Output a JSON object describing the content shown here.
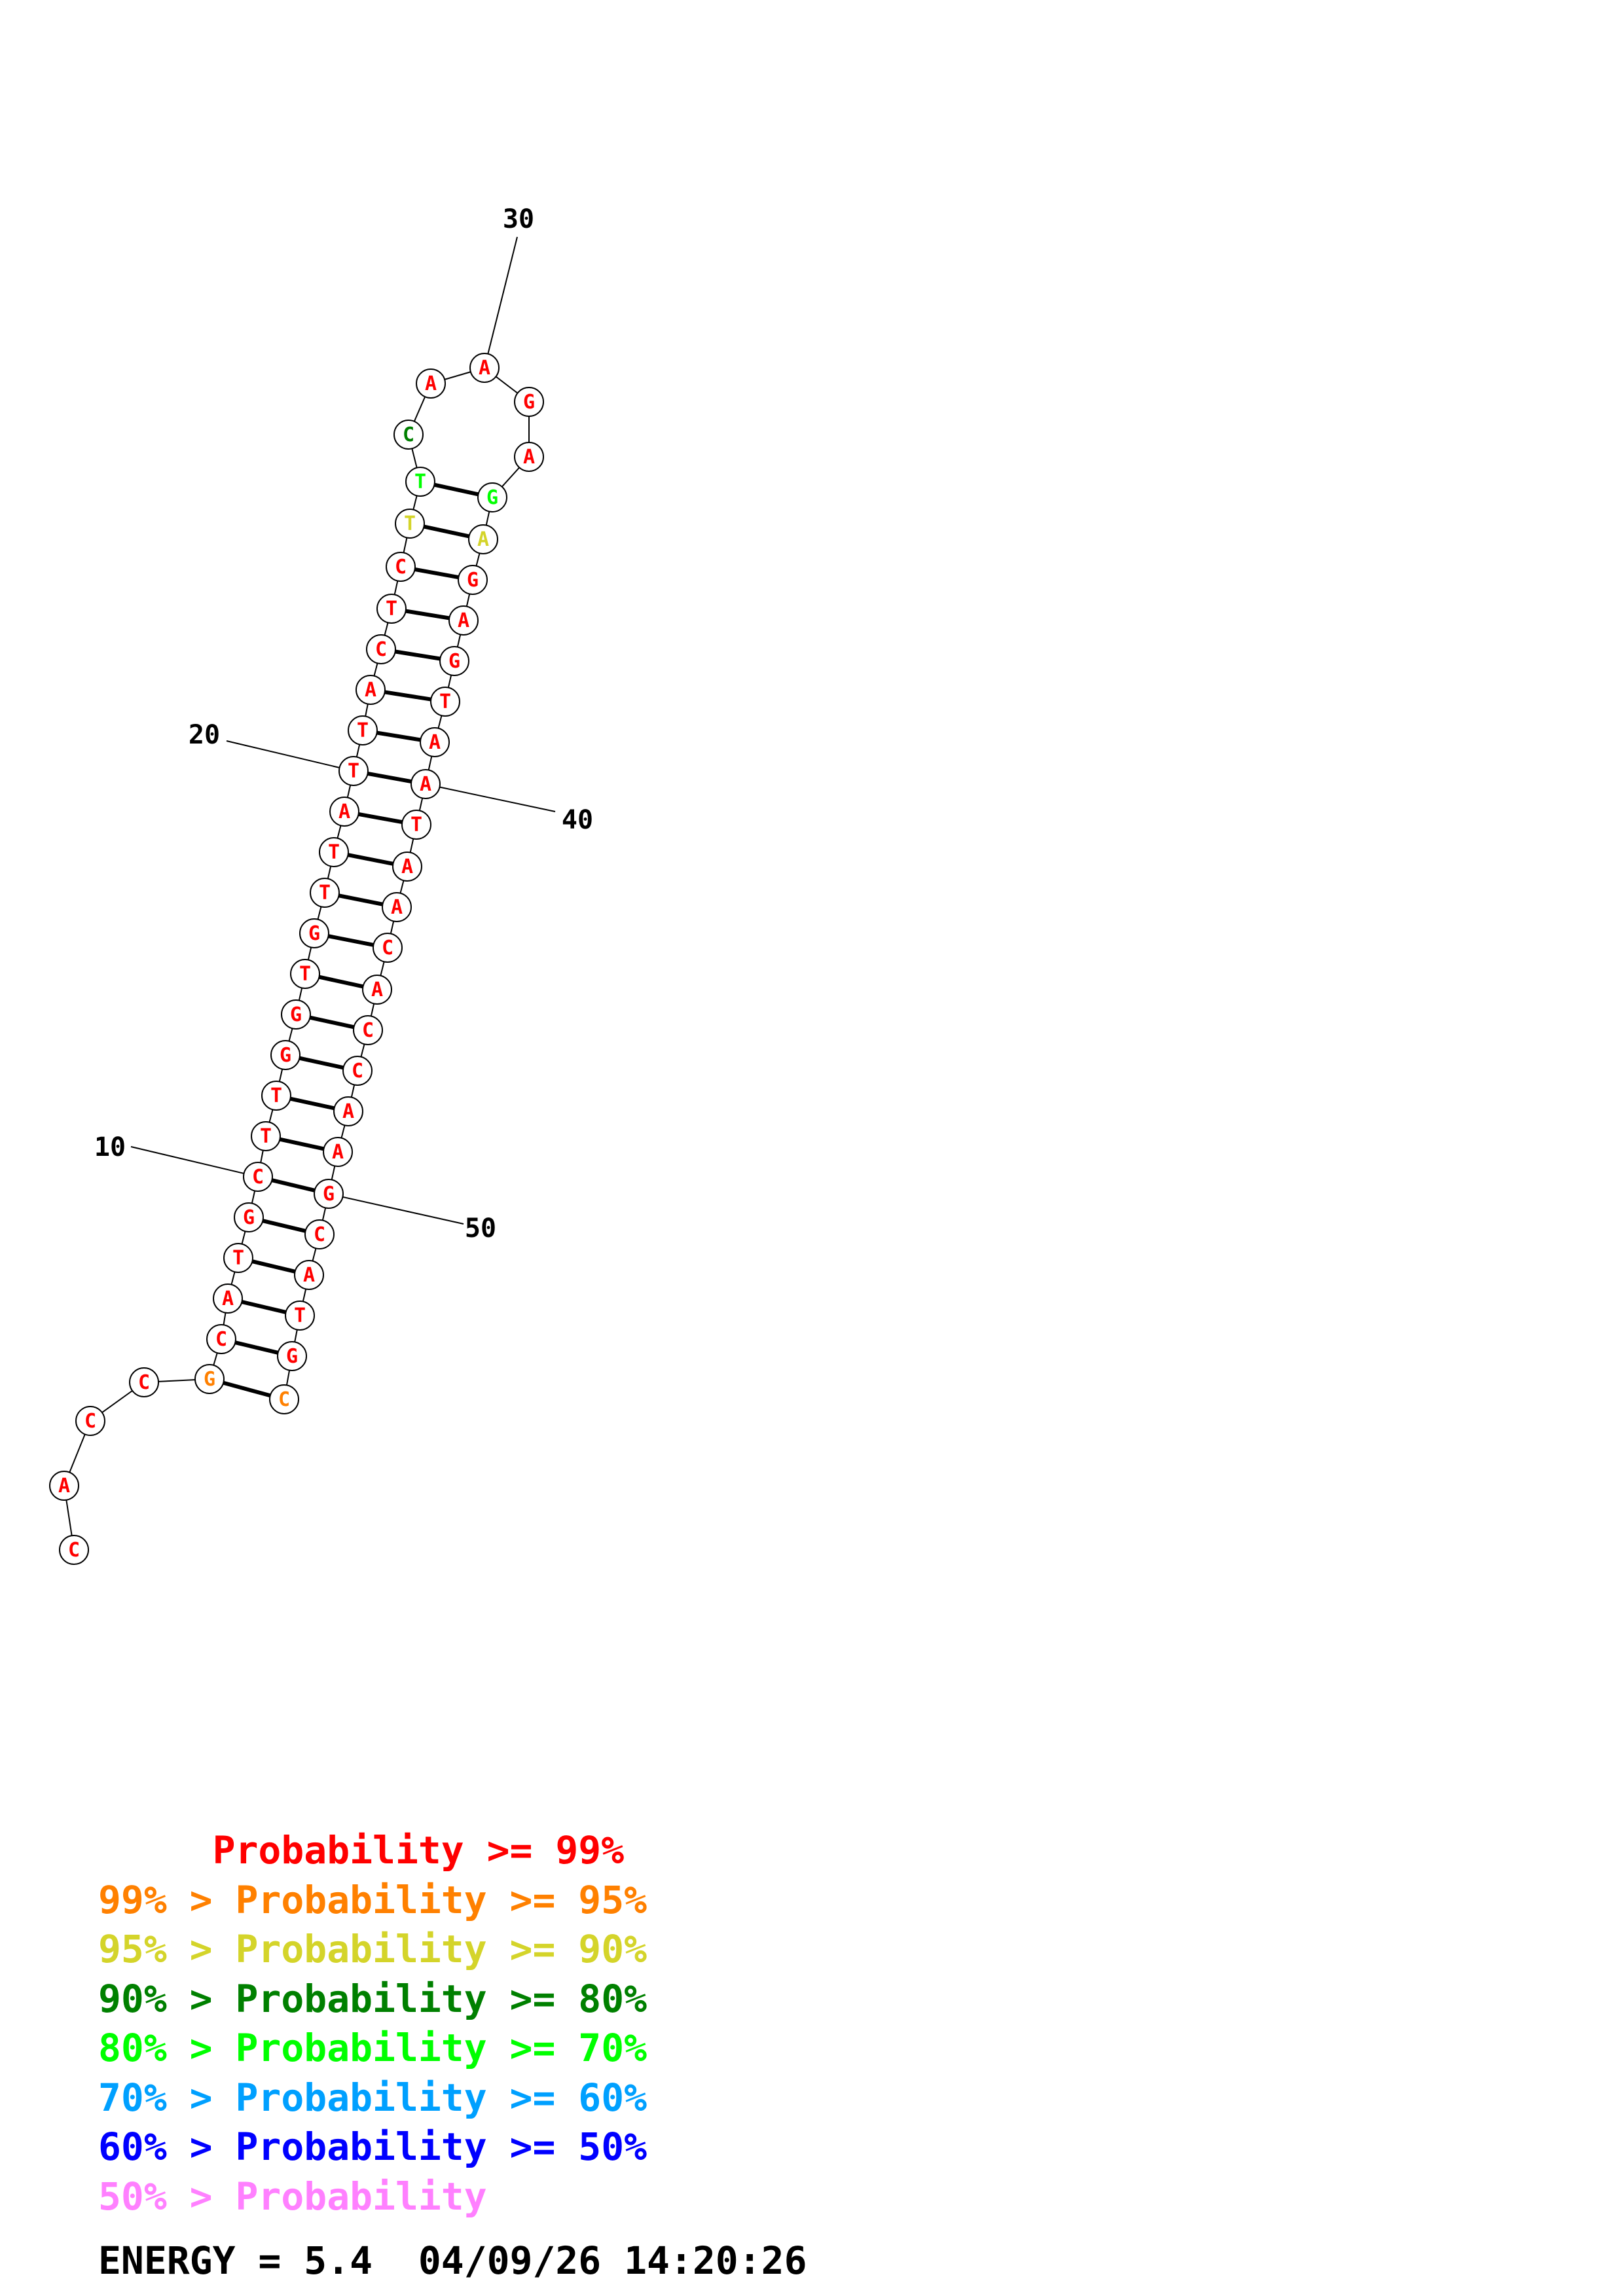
{
  "colors": {
    "p99": "#ff0000",
    "p95": "#ff8000",
    "p90": "#d4d42a",
    "p80": "#008000",
    "p70": "#00ff00",
    "p60": "#00a0ff",
    "p50": "#0000ff",
    "plow": "#ff80ff"
  },
  "sequence": [
    {
      "n": 1,
      "base": "C",
      "color": "p99"
    },
    {
      "n": 2,
      "base": "A",
      "color": "p99"
    },
    {
      "n": 3,
      "base": "C",
      "color": "p99"
    },
    {
      "n": 4,
      "base": "C",
      "color": "p99"
    },
    {
      "n": 5,
      "base": "G",
      "color": "p95"
    },
    {
      "n": 6,
      "base": "C",
      "color": "p99"
    },
    {
      "n": 7,
      "base": "A",
      "color": "p99"
    },
    {
      "n": 8,
      "base": "T",
      "color": "p99"
    },
    {
      "n": 9,
      "base": "G",
      "color": "p99"
    },
    {
      "n": 10,
      "base": "C",
      "color": "p99"
    },
    {
      "n": 11,
      "base": "T",
      "color": "p99"
    },
    {
      "n": 12,
      "base": "T",
      "color": "p99"
    },
    {
      "n": 13,
      "base": "G",
      "color": "p99"
    },
    {
      "n": 14,
      "base": "G",
      "color": "p99"
    },
    {
      "n": 15,
      "base": "T",
      "color": "p99"
    },
    {
      "n": 16,
      "base": "G",
      "color": "p99"
    },
    {
      "n": 17,
      "base": "T",
      "color": "p99"
    },
    {
      "n": 18,
      "base": "T",
      "color": "p99"
    },
    {
      "n": 19,
      "base": "A",
      "color": "p99"
    },
    {
      "n": 20,
      "base": "T",
      "color": "p99"
    },
    {
      "n": 21,
      "base": "T",
      "color": "p99"
    },
    {
      "n": 22,
      "base": "A",
      "color": "p99"
    },
    {
      "n": 23,
      "base": "C",
      "color": "p99"
    },
    {
      "n": 24,
      "base": "T",
      "color": "p99"
    },
    {
      "n": 25,
      "base": "C",
      "color": "p99"
    },
    {
      "n": 26,
      "base": "T",
      "color": "p90"
    },
    {
      "n": 27,
      "base": "T",
      "color": "p70"
    },
    {
      "n": 28,
      "base": "C",
      "color": "p80"
    },
    {
      "n": 29,
      "base": "A",
      "color": "p99"
    },
    {
      "n": 30,
      "base": "A",
      "color": "p99"
    },
    {
      "n": 31,
      "base": "G",
      "color": "p99"
    },
    {
      "n": 32,
      "base": "A",
      "color": "p99"
    },
    {
      "n": 33,
      "base": "G",
      "color": "p70"
    },
    {
      "n": 34,
      "base": "A",
      "color": "p90"
    },
    {
      "n": 35,
      "base": "G",
      "color": "p99"
    },
    {
      "n": 36,
      "base": "A",
      "color": "p99"
    },
    {
      "n": 37,
      "base": "G",
      "color": "p99"
    },
    {
      "n": 38,
      "base": "T",
      "color": "p99"
    },
    {
      "n": 39,
      "base": "A",
      "color": "p99"
    },
    {
      "n": 40,
      "base": "A",
      "color": "p99"
    },
    {
      "n": 41,
      "base": "T",
      "color": "p99"
    },
    {
      "n": 42,
      "base": "A",
      "color": "p99"
    },
    {
      "n": 43,
      "base": "A",
      "color": "p99"
    },
    {
      "n": 44,
      "base": "C",
      "color": "p99"
    },
    {
      "n": 45,
      "base": "A",
      "color": "p99"
    },
    {
      "n": 46,
      "base": "C",
      "color": "p99"
    },
    {
      "n": 47,
      "base": "C",
      "color": "p99"
    },
    {
      "n": 48,
      "base": "A",
      "color": "p99"
    },
    {
      "n": 49,
      "base": "A",
      "color": "p99"
    },
    {
      "n": 50,
      "base": "G",
      "color": "p99"
    },
    {
      "n": 51,
      "base": "C",
      "color": "p99"
    },
    {
      "n": 52,
      "base": "A",
      "color": "p99"
    },
    {
      "n": 53,
      "base": "T",
      "color": "p99"
    },
    {
      "n": 54,
      "base": "G",
      "color": "p99"
    },
    {
      "n": 55,
      "base": "C",
      "color": "p95"
    }
  ],
  "pairs": [
    [
      5,
      55
    ],
    [
      6,
      54
    ],
    [
      7,
      53
    ],
    [
      8,
      52
    ],
    [
      9,
      51
    ],
    [
      10,
      50
    ],
    [
      11,
      49
    ],
    [
      12,
      48
    ],
    [
      13,
      47
    ],
    [
      14,
      46
    ],
    [
      15,
      45
    ],
    [
      16,
      44
    ],
    [
      17,
      43
    ],
    [
      18,
      42
    ],
    [
      19,
      41
    ],
    [
      20,
      40
    ],
    [
      21,
      39
    ],
    [
      22,
      38
    ],
    [
      23,
      37
    ],
    [
      24,
      36
    ],
    [
      25,
      35
    ],
    [
      26,
      34
    ],
    [
      27,
      33
    ]
  ],
  "ticks": [
    {
      "n": 10,
      "label": "10"
    },
    {
      "n": 20,
      "label": "20"
    },
    {
      "n": 30,
      "label": "30"
    },
    {
      "n": 40,
      "label": "40"
    },
    {
      "n": 50,
      "label": "50"
    }
  ],
  "legend": [
    {
      "text": "     Probability >= 99%",
      "color": "p99"
    },
    {
      "text": "99% > Probability >= 95%",
      "color": "p95"
    },
    {
      "text": "95% > Probability >= 90%",
      "color": "p90"
    },
    {
      "text": "90% > Probability >= 80%",
      "color": "p80"
    },
    {
      "text": "80% > Probability >= 70%",
      "color": "p70"
    },
    {
      "text": "70% > Probability >= 60%",
      "color": "p60"
    },
    {
      "text": "60% > Probability >= 50%",
      "color": "p50"
    },
    {
      "text": "50% > Probability",
      "color": "plow"
    }
  ],
  "energy_line": "ENERGY = 5.4  04/09/26 14:20:26"
}
